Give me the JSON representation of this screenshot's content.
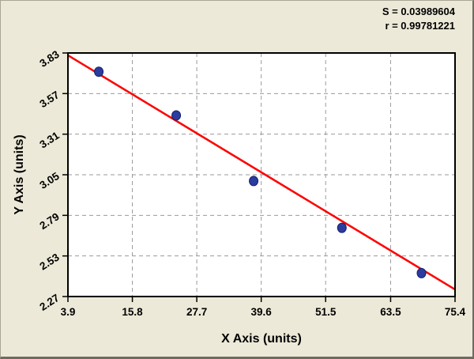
{
  "chart_data": {
    "type": "scatter",
    "title": "",
    "xlabel": "X Axis (units)",
    "ylabel": "Y Axis (units)",
    "x_ticks": [
      "3.9",
      "15.8",
      "27.7",
      "39.6",
      "51.5",
      "63.5",
      "75.4"
    ],
    "y_ticks": [
      "3.83",
      "3.57",
      "3.31",
      "3.05",
      "2.79",
      "2.53",
      "2.27"
    ],
    "xlim": [
      3.9,
      75.4
    ],
    "ylim": [
      2.27,
      3.83
    ],
    "grid": "dashed",
    "legend_position": "none",
    "points": [
      {
        "x": 9.6,
        "y": 3.71
      },
      {
        "x": 23.9,
        "y": 3.43
      },
      {
        "x": 38.2,
        "y": 3.01
      },
      {
        "x": 54.5,
        "y": 2.71
      },
      {
        "x": 69.2,
        "y": 2.42
      }
    ],
    "fit_line": {
      "x1": 3.9,
      "y1": 3.815,
      "x2": 75.4,
      "y2": 2.315
    },
    "annotations": [
      "S = 0.03989604",
      "r = 0.99781221"
    ],
    "colors": {
      "background": "#ece9d8",
      "plot_bg": "#ffffff",
      "grid": "#9a9a9a",
      "point": "#2b3c9e",
      "point_edge": "#141f6e",
      "line": "#fe0000",
      "text": "#000000"
    }
  }
}
